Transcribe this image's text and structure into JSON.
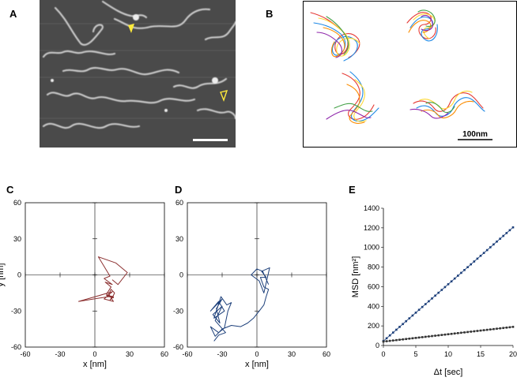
{
  "panels": {
    "a": "A",
    "b": "B",
    "c": "C",
    "d": "D",
    "e": "E"
  },
  "panel_b": {
    "scale_label": "100nm"
  },
  "chart_data": [
    {
      "type": "line",
      "panel": "C",
      "xlabel": "x [nm]",
      "ylabel": "y [nm]",
      "xlim": [
        -60,
        60
      ],
      "ylim": [
        -60,
        60
      ],
      "xticks": [
        "-60",
        "-30",
        "0",
        "30",
        "60"
      ],
      "yticks": [
        "60",
        "30",
        "0",
        "-30",
        "-60"
      ],
      "color": "#8B2F2F",
      "series": [
        {
          "x": [
            15,
            20,
            28,
            18,
            3,
            13,
            8,
            15,
            9,
            14,
            10,
            16,
            12,
            -14,
            15,
            8,
            16,
            12,
            14,
            17,
            15,
            10,
            16,
            13,
            15
          ],
          "y": [
            -4,
            -8,
            2,
            10,
            15,
            -1,
            -3,
            -8,
            -6,
            -10,
            -16,
            -19,
            -18,
            -22,
            -14,
            -20,
            -22,
            -16,
            -12,
            -15,
            -19,
            -17,
            -18,
            -21,
            -18
          ]
        }
      ]
    },
    {
      "type": "line",
      "panel": "D",
      "xlabel": "x [nm]",
      "ylabel": "y [nm]",
      "xlim": [
        -60,
        60
      ],
      "ylim": [
        -60,
        60
      ],
      "xticks": [
        "-60",
        "-30",
        "0",
        "30",
        "60"
      ],
      "yticks": [
        "60",
        "30",
        "0",
        "-30",
        "-60"
      ],
      "color": "#1C3F7A",
      "series": [
        {
          "x": [
            -37,
            -33,
            -27,
            -36,
            -30,
            -38,
            -32,
            -35,
            -30,
            -40,
            -33,
            -28,
            -37,
            -31,
            -26,
            -22,
            -25,
            -28,
            -33,
            -40,
            -36,
            -30,
            -22,
            -14,
            -8,
            -3,
            2,
            6,
            8,
            10,
            6,
            3,
            8,
            4,
            11,
            6,
            2,
            -5,
            0,
            5,
            10
          ],
          "y": [
            -55,
            -50,
            -48,
            -38,
            -26,
            -33,
            -40,
            -28,
            -20,
            -30,
            -22,
            -30,
            -36,
            -18,
            -25,
            -23,
            -30,
            -44,
            -48,
            -43,
            -51,
            -45,
            -42,
            -43,
            -40,
            -36,
            -30,
            -25,
            -18,
            -12,
            -10,
            -2,
            -2,
            3,
            6,
            -15,
            -5,
            0,
            5,
            3,
            -8
          ]
        }
      ]
    },
    {
      "type": "scatter",
      "panel": "E",
      "xlabel": "Δt [sec]",
      "ylabel": "MSD [nm²]",
      "xlim": [
        0,
        20
      ],
      "ylim": [
        0,
        1400
      ],
      "xticks": [
        "0",
        "5",
        "10",
        "15",
        "20"
      ],
      "yticks": [
        "0",
        "200",
        "400",
        "600",
        "800",
        "1000",
        "1200",
        "1400"
      ],
      "series": [
        {
          "color": "#1C3F7A",
          "fit_intercept": 45,
          "fit_slope": 58
        },
        {
          "color": "#333333",
          "fit_intercept": 40,
          "fit_slope": 7.5
        }
      ]
    }
  ]
}
